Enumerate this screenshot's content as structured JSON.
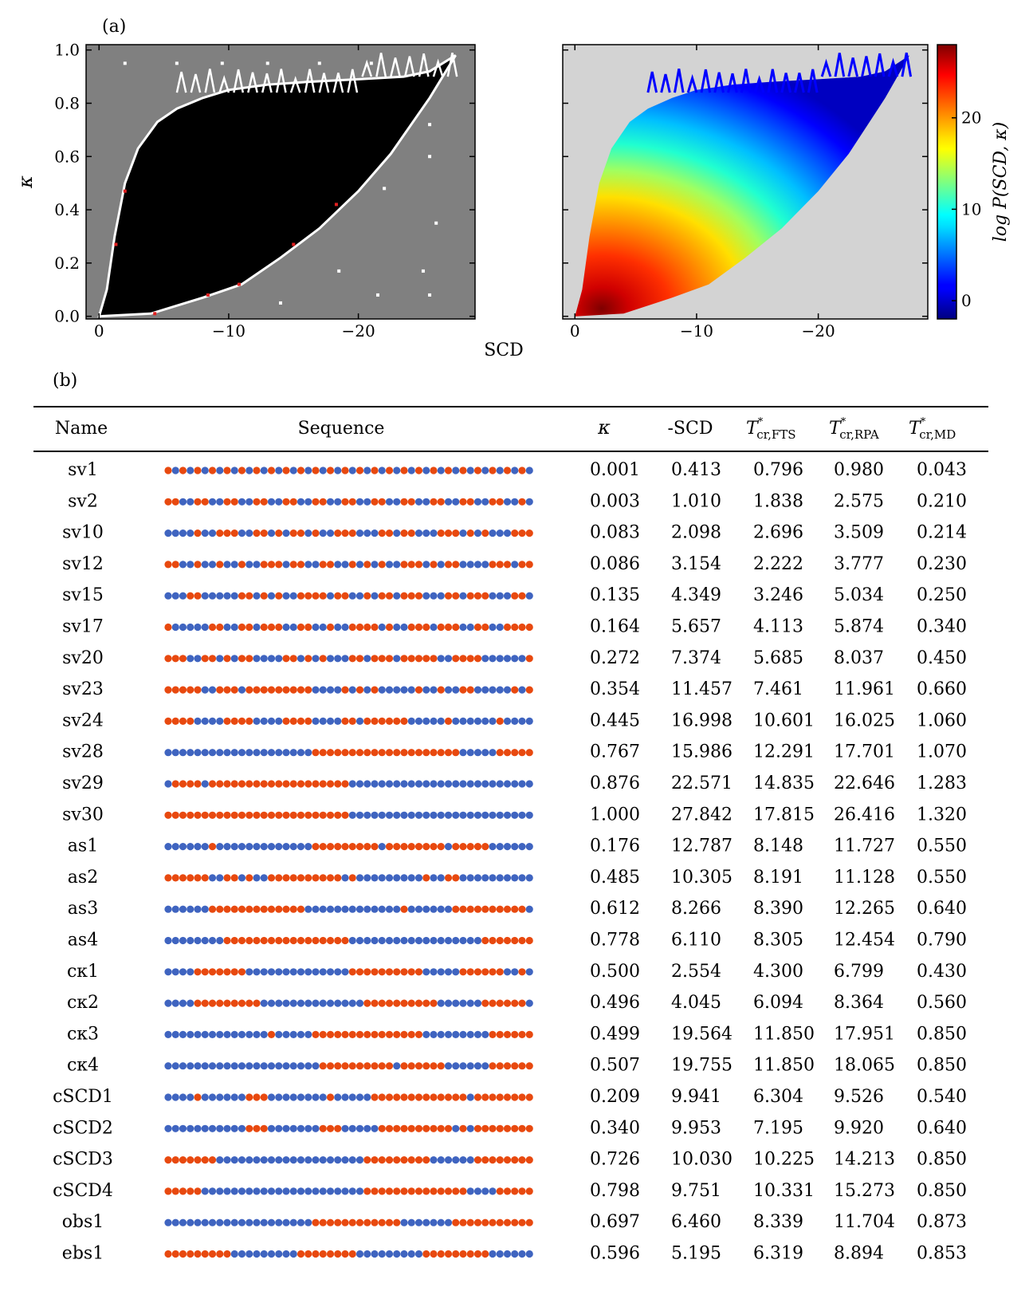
{
  "panel_a_label": "(a)",
  "panel_b_label": "(b)",
  "colors": {
    "positive": "#e8490f",
    "negative": "#3f64c0",
    "left_background": "#808080",
    "right_background": "#d3d3d3"
  },
  "chart_data": [
    {
      "type": "heatmap",
      "panel": "a-left",
      "title": "",
      "xlabel": "SCD",
      "ylabel": "κ",
      "xlim": [
        1,
        -29
      ],
      "ylim": [
        -0.01,
        1.02
      ],
      "xticks": [
        "0",
        "−10",
        "−20"
      ],
      "yticks": [
        "0.0",
        "0.2",
        "0.4",
        "0.6",
        "0.8",
        "1.0"
      ],
      "boundary_upper": [
        [
          0,
          0
        ],
        [
          -0.6,
          0.1
        ],
        [
          -1.2,
          0.3
        ],
        [
          -2.0,
          0.5
        ],
        [
          -3.0,
          0.63
        ],
        [
          -4.5,
          0.73
        ],
        [
          -6.0,
          0.78
        ],
        [
          -8.0,
          0.82
        ],
        [
          -10.0,
          0.85
        ],
        [
          -13.0,
          0.87
        ],
        [
          -16.0,
          0.88
        ],
        [
          -20.0,
          0.89
        ],
        [
          -23.5,
          0.9
        ],
        [
          -25.5,
          0.92
        ],
        [
          -27.5,
          0.98
        ]
      ],
      "boundary_lower": [
        [
          0,
          0
        ],
        [
          -4.0,
          0.01
        ],
        [
          -8.0,
          0.07
        ],
        [
          -11.0,
          0.12
        ],
        [
          -14.0,
          0.22
        ],
        [
          -17.0,
          0.33
        ],
        [
          -20.0,
          0.47
        ],
        [
          -22.5,
          0.61
        ],
        [
          -24.5,
          0.75
        ],
        [
          -25.5,
          0.82
        ]
      ]
    },
    {
      "type": "heatmap",
      "panel": "a-right",
      "xlabel": "",
      "ylabel": "",
      "colorbar_label": "log P(SCD, κ)",
      "colorbar_ticks": [
        0,
        10,
        20
      ],
      "colorbar_range": [
        -2,
        28
      ],
      "xlim": [
        1,
        -29
      ],
      "ylim": [
        -0.01,
        1.02
      ],
      "xticks": [
        "0",
        "−10",
        "−20"
      ]
    },
    {
      "type": "table",
      "panel": "b",
      "columns": [
        "Name",
        "Sequence",
        "κ",
        "-SCD",
        "T*cr,FTS",
        "T*cr,RPA",
        "T*cr,MD"
      ],
      "rows": [
        {
          "name": "sv1",
          "seq": "EKEKEKEKEKEKEKEKEKEKEKEKEKEKEKEKEKEKEKEKEKEKEKEKEK",
          "kappa": "0.001",
          "scd": "0.413",
          "fts": "0.796",
          "rpa": "0.980",
          "md": "0.043"
        },
        {
          "name": "sv2",
          "seq": "EEKKEEKKEEKKEEKKEEKKEEKKEEKKEEKKEEKKEEKKEEKKEEKKEK",
          "kappa": "0.003",
          "scd": "1.010",
          "fts": "1.838",
          "rpa": "2.575",
          "md": "0.210"
        },
        {
          "name": "sv10",
          "seq": "KKKKEKKEEEKKEEKEKEEKEKKEEEKKKEEKEEKKKEEEKEKEKKKEEE",
          "kappa": "0.083",
          "scd": "2.098",
          "fts": "2.696",
          "rpa": "3.509",
          "md": "0.214"
        },
        {
          "name": "sv12",
          "seq": "EEKKEKKEKKEKKEEEKEEKKEEKKEKEKEKKEEEKEKEEKKKKEEEKEE",
          "kappa": "0.086",
          "scd": "3.154",
          "fts": "2.222",
          "rpa": "3.777",
          "md": "0.230"
        },
        {
          "name": "sv15",
          "seq": "KKKEEKKKKKEEKEKEKKEEEEKEEKKEKEEKEEEKKKEEKEEEKKKEEK",
          "kappa": "0.135",
          "scd": "4.349",
          "fts": "3.246",
          "rpa": "5.034",
          "md": "0.250"
        },
        {
          "name": "sv17",
          "seq": "EKKKKKEEKKEEKEEEKKEEKKEKKEEEEKEKKEEEKEEEKKEEKKEEEE",
          "kappa": "0.164",
          "scd": "5.657",
          "fts": "4.113",
          "rpa": "5.874",
          "md": "0.340"
        },
        {
          "name": "sv20",
          "seq": "EEEKKEEKEKEEKKKKEEKEKEKKKEEKEEEKEEEEEKKEEEEKKKKKKE",
          "kappa": "0.272",
          "scd": "7.374",
          "fts": "5.685",
          "rpa": "8.037",
          "md": "0.450"
        },
        {
          "name": "sv23",
          "seq": "EEEEEKKEEEKEEEEEEEEEKKKKEKEKEKKKKKEKKEKKEEKKKKKEKE",
          "kappa": "0.354",
          "scd": "11.457",
          "fts": "7.461",
          "rpa": "11.961",
          "md": "0.660"
        },
        {
          "name": "sv24",
          "seq": "EEEEKKKKEEEEKKKKEEEEKKKKEEKEEEEEEKKKKKEKKKKKKEKKKK",
          "kappa": "0.445",
          "scd": "16.998",
          "fts": "10.601",
          "rpa": "16.025",
          "md": "1.060"
        },
        {
          "name": "sv28",
          "seq": "KKKKKKKKKKKKKKKKKKKKEEEEEEEEEEEEEEEEEEEEKKKKKEEEEE",
          "kappa": "0.767",
          "scd": "15.986",
          "fts": "12.291",
          "rpa": "17.701",
          "md": "1.070"
        },
        {
          "name": "sv29",
          "seq": "KEEEEKEEEEEEEEEEEEEEEEEEEKKKKKKKKKKKKKKKKKKKKKKKKK",
          "kappa": "0.876",
          "scd": "22.571",
          "fts": "14.835",
          "rpa": "22.646",
          "md": "1.283"
        },
        {
          "name": "sv30",
          "seq": "EEEEEEEEEEEEEEEEEEEEEEEEEKKKKKKKKKKKKKKKKKKKKKKKKK",
          "kappa": "1.000",
          "scd": "27.842",
          "fts": "17.815",
          "rpa": "26.416",
          "md": "1.320"
        },
        {
          "name": "as1",
          "seq": "KKKKKKEKKKKKKKKKKKKKEEEEEEEEEKEEEEEEEEKEEEEEKKKKKK",
          "kappa": "0.176",
          "scd": "12.787",
          "fts": "8.148",
          "rpa": "11.727",
          "md": "0.550"
        },
        {
          "name": "as2",
          "seq": "EEEEEEKKEEKEKKEEEEEEEEEEKEKKKKKKKKKEKKEEKKKKKKKKKK",
          "kappa": "0.485",
          "scd": "10.305",
          "fts": "8.191",
          "rpa": "11.128",
          "md": "0.550"
        },
        {
          "name": "as3",
          "seq": "KKKKKKEEEEEEEEEEEEEKKKKKKKKKKKKKEKKKKKKEEEEEEEEEEK",
          "kappa": "0.612",
          "scd": "8.266",
          "fts": "8.390",
          "rpa": "12.265",
          "md": "0.640"
        },
        {
          "name": "as4",
          "seq": "KKKKKKKKEEEEEEEEEEEEEEEEEKKKKKKKKKKKKKKKKKKEEEEEEE",
          "kappa": "0.778",
          "scd": "6.110",
          "fts": "8.305",
          "rpa": "12.454",
          "md": "0.790"
        },
        {
          "name": "cκ1",
          "seq": "KKKKEEEEEEEKKKKKKKKKKKKKKEEEEEEEEEEKKKKKEEEEEEKKEK",
          "kappa": "0.500",
          "scd": "2.554",
          "fts": "4.300",
          "rpa": "6.799",
          "md": "0.430"
        },
        {
          "name": "cκ2",
          "seq": "KKKKEEEEEEEEEKKKKKKKKKKKKKKEEEEEEEEEEKKKKKKEEEEEEK",
          "kappa": "0.496",
          "scd": "4.045",
          "fts": "6.094",
          "rpa": "8.364",
          "md": "0.560"
        },
        {
          "name": "cκ3",
          "seq": "KKKKKKKKKKKKKKEKKKKKEEEEEEEEEEEEEEEKKKKKKKKKEEEEEE",
          "kappa": "0.499",
          "scd": "19.564",
          "fts": "11.850",
          "rpa": "17.951",
          "md": "0.850"
        },
        {
          "name": "cκ4",
          "seq": "KKKKKKKKKKKKKKKKKKKKKEEEEEEEEEEKEEEEEEKKKKKKEEEEEE",
          "kappa": "0.507",
          "scd": "19.755",
          "fts": "11.850",
          "rpa": "18.065",
          "md": "0.850"
        },
        {
          "name": "cSCD1",
          "seq": "KKKKEKKKKKKEEEKKKKKKKKEKKKKKEEEEEEEEEEEEEKEEEEEEEE",
          "kappa": "0.209",
          "scd": "9.941",
          "fts": "6.304",
          "rpa": "9.526",
          "md": "0.540"
        },
        {
          "name": "cSCD2",
          "seq": "KKKKKKKKKKKEEEKKKKKKKEEEKKKKKEEEEEEEEEEKEKEEEEEEEE",
          "kappa": "0.340",
          "scd": "9.953",
          "fts": "7.195",
          "rpa": "9.920",
          "md": "0.640"
        },
        {
          "name": "cSCD3",
          "seq": "EEEEEEEKKKKKKKKKKKKKKKKKKKKEEEEEEEEEKKKKKKEEEEEEEE",
          "kappa": "0.726",
          "scd": "10.030",
          "fts": "10.225",
          "rpa": "14.213",
          "md": "0.850"
        },
        {
          "name": "cSCD4",
          "seq": "EEEEEKKKKKKKKKKKKKKKKKKKKKKEEEEEEEEEEEEEEKKKKEEEEE",
          "kappa": "0.798",
          "scd": "9.751",
          "fts": "10.331",
          "rpa": "15.273",
          "md": "0.850"
        },
        {
          "name": "obs1",
          "seq": "KKKKKKKKKKKKKKKKKKKKEEEEEEEEEEEEKKKKKKKEEEEEEEEEEE",
          "kappa": "0.697",
          "scd": "6.460",
          "fts": "8.339",
          "rpa": "11.704",
          "md": "0.873"
        },
        {
          "name": "ebs1",
          "seq": "EEEEEEEEEKKKKKKKKKEEEEEEEEKKKKKKKKKEEEEEEEEEKKKKKK",
          "kappa": "0.596",
          "scd": "5.195",
          "fts": "6.319",
          "rpa": "8.894",
          "md": "0.853"
        }
      ]
    }
  ]
}
